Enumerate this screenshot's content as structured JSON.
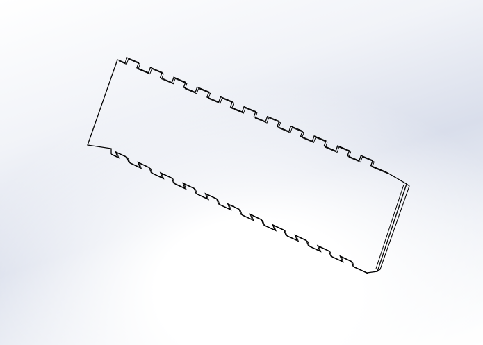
{
  "viewport": {
    "background_top": "#ffffff",
    "background_mid": "#d9deeb",
    "background_bottom": "#ffffff"
  },
  "part": {
    "edge_color": "#000000",
    "top_tabs": 11,
    "bottom_tabs": 11,
    "has_thickness_edge": true
  }
}
